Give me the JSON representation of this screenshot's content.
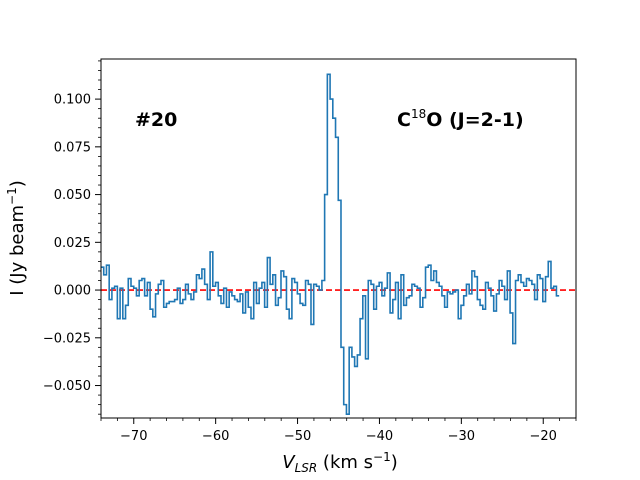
{
  "chart_data": {
    "type": "line",
    "style": "step",
    "xlabel_main": "V",
    "xlabel_sub": "LSR",
    "xlabel_rest": " (km s",
    "xlabel_sup": "−1",
    "xlabel_end": ")",
    "ylabel_main": "I (Jy beam",
    "ylabel_sup": "−1",
    "ylabel_end": ")",
    "xlim": [
      -74,
      -16
    ],
    "ylim": [
      -0.067,
      0.121
    ],
    "xticks": [
      -70,
      -60,
      -50,
      -40,
      -30,
      -20
    ],
    "xtick_labels": [
      "−70",
      "−60",
      "−50",
      "−40",
      "−30",
      "−20"
    ],
    "yticks": [
      -0.05,
      -0.025,
      0.0,
      0.025,
      0.05,
      0.075,
      0.1
    ],
    "ytick_labels": [
      "−0.050",
      "−0.025",
      "0.000",
      "0.025",
      "0.050",
      "0.075",
      "0.100"
    ],
    "label_left": "#20",
    "label_right_pre": "C",
    "label_right_sup": "18",
    "label_right_post": "O (J=2-1)",
    "baseline": {
      "y": 0.0,
      "color": "#ff0000",
      "style": "dashed"
    },
    "line_color": "#1f77b4",
    "series": [
      {
        "name": "C18O (J=2-1) #20",
        "x_start": -74.0,
        "x_step": 0.333,
        "values": [
          0.012,
          0.008,
          0.013,
          -0.005,
          0.001,
          0.002,
          -0.015,
          0.001,
          -0.015,
          -0.008,
          0.006,
          0.002,
          0.001,
          -0.003,
          0.005,
          0.006,
          -0.003,
          0.004,
          -0.01,
          -0.014,
          -0.002,
          0.003,
          0.005,
          -0.009,
          -0.007,
          -0.006,
          -0.006,
          -0.005,
          0.001,
          -0.007,
          -0.005,
          0.003,
          -0.002,
          -0.005,
          -0.001,
          0.008,
          0.006,
          0.011,
          0.003,
          -0.005,
          0.02,
          0.002,
          0.004,
          -0.003,
          -0.007,
          0.001,
          -0.009,
          -0.001,
          -0.003,
          -0.005,
          -0.006,
          -0.002,
          -0.012,
          -0.001,
          -0.009,
          -0.015,
          0.004,
          -0.007,
          0.001,
          0.004,
          -0.009,
          0.017,
          0.003,
          0.008,
          -0.008,
          -0.004,
          0.01,
          0.007,
          -0.01,
          -0.015,
          0.006,
          0.004,
          -0.002,
          -0.007,
          -0.008,
          0.005,
          0.003,
          -0.018,
          0.003,
          0.002,
          0.0,
          0.005,
          0.05,
          0.113,
          0.1,
          0.09,
          0.08,
          0.047,
          -0.03,
          -0.06,
          -0.065,
          -0.03,
          -0.035,
          -0.04,
          -0.034,
          -0.015,
          -0.003,
          -0.036,
          0.005,
          0.003,
          -0.01,
          0.002,
          0.004,
          -0.003,
          0.001,
          0.009,
          -0.012,
          -0.005,
          0.004,
          -0.015,
          0.008,
          -0.008,
          -0.004,
          -0.003,
          0.003,
          0.002,
          0.001,
          -0.009,
          -0.004,
          0.012,
          0.013,
          0.005,
          0.01,
          0.004,
          0.002,
          -0.003,
          -0.009,
          -0.001,
          -0.002,
          -0.001,
          0.0,
          -0.015,
          -0.008,
          -0.003,
          0.003,
          -0.002,
          0.01,
          0.007,
          -0.005,
          -0.008,
          -0.01,
          0.004,
          0.001,
          -0.003,
          -0.011,
          -0.002,
          0.005,
          0.002,
          -0.005,
          0.01,
          -0.012,
          -0.028,
          0.005,
          0.008,
          0.004,
          0.002,
          0.006,
          0.005,
          0.003,
          -0.005,
          0.008,
          0.006,
          -0.006,
          0.007,
          0.015,
          0.001,
          0.002,
          -0.003
        ]
      }
    ]
  }
}
